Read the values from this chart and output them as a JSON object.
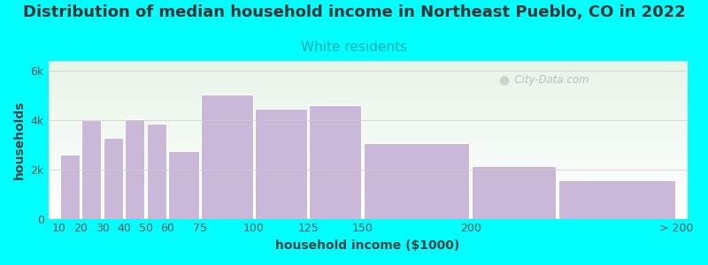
{
  "title": "Distribution of median household income in Northeast Pueblo, CO in 2022",
  "subtitle": "White residents",
  "xlabel": "household income ($1000)",
  "ylabel": "households",
  "background_color": "#00FFFF",
  "plot_bg_top": "#e8f5e9",
  "plot_bg_bottom": "#f8fff8",
  "bar_color": "#c9b8d8",
  "bar_edge_color": "#ffffff",
  "bar_lefts": [
    10,
    20,
    30,
    40,
    50,
    60,
    75,
    100,
    125,
    150,
    200,
    240
  ],
  "bar_widths": [
    10,
    10,
    10,
    10,
    10,
    15,
    25,
    25,
    25,
    50,
    40,
    55
  ],
  "values": [
    2600,
    4000,
    3300,
    4050,
    3850,
    2750,
    5050,
    4450,
    4600,
    3050,
    2150,
    1550
  ],
  "ylim": [
    0,
    6400
  ],
  "yticks": [
    0,
    2000,
    4000,
    6000
  ],
  "ytick_labels": [
    "0",
    "2k",
    "4k",
    "6k"
  ],
  "xtick_positions": [
    10,
    20,
    30,
    40,
    50,
    60,
    75,
    100,
    125,
    150,
    200,
    295
  ],
  "xtick_labels": [
    "10",
    "20",
    "30",
    "40",
    "50",
    "60",
    "75",
    "100",
    "125",
    "150",
    "200",
    "> 200"
  ],
  "xlim": [
    5,
    300
  ],
  "title_fontsize": 13,
  "subtitle_fontsize": 11,
  "subtitle_color": "#00AAAA",
  "axis_label_fontsize": 10,
  "tick_fontsize": 9,
  "title_color": "#333333",
  "watermark": "  City-Data.com"
}
